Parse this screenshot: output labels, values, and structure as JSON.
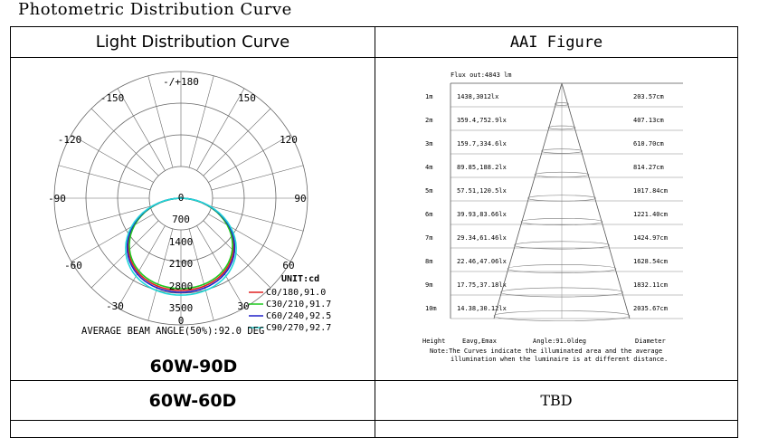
{
  "page_title": "Photometric Distribution Curve",
  "headers": {
    "left": "Light Distribution Curve",
    "right": "AAI Figure"
  },
  "polar": {
    "angle_labels": {
      "top": "-/+180",
      "m150": "-150",
      "p150": "150",
      "m120": "-120",
      "p120": "120",
      "m90": "-90",
      "p90": "90",
      "m60": "-60",
      "p60": "60",
      "m30": "-30",
      "p30": "30",
      "zero": "0"
    },
    "ring_labels": [
      "0",
      "700",
      "1400",
      "2100",
      "2800",
      "3500"
    ],
    "unit": "UNIT:cd",
    "legend": [
      {
        "label": "C0/180,91.0",
        "color": "#e02020"
      },
      {
        "label": "C30/210,91.7",
        "color": "#1ec81e"
      },
      {
        "label": "C60/240,92.5",
        "color": "#2020c8"
      },
      {
        "label": "C90/270,92.7",
        "color": "#20d8d8"
      }
    ],
    "beam_note": "AVERAGE BEAM ANGLE(50%):92.0 DEG",
    "model": "60W-90D"
  },
  "aai": {
    "flux": "Flux out:4843 lm",
    "rows": [
      {
        "height": "1m",
        "eavg": "1438,3012lx",
        "dia": "203.57cm"
      },
      {
        "height": "2m",
        "eavg": "359.4,752.9lx",
        "dia": "407.13cm"
      },
      {
        "height": "3m",
        "eavg": "159.7,334.6lx",
        "dia": "610.70cm"
      },
      {
        "height": "4m",
        "eavg": "89.85,188.2lx",
        "dia": "814.27cm"
      },
      {
        "height": "5m",
        "eavg": "57.51,120.5lx",
        "dia": "1017.84cm"
      },
      {
        "height": "6m",
        "eavg": "39.93,83.66lx",
        "dia": "1221.40cm"
      },
      {
        "height": "7m",
        "eavg": "29.34,61.46lx",
        "dia": "1424.97cm"
      },
      {
        "height": "8m",
        "eavg": "22.46,47.06lx",
        "dia": "1628.54cm"
      },
      {
        "height": "9m",
        "eavg": "17.75,37.18lx",
        "dia": "1832.11cm"
      },
      {
        "height": "10m",
        "eavg": "14.38,30.12lx",
        "dia": "2035.67cm"
      }
    ],
    "footer": {
      "height": "Height",
      "eavg": "Eavg,Emax",
      "angle": "Angle:91.0ldeg",
      "dia": "Diameter"
    },
    "note1": "Note:The Curves indicate the illuminated area and the average",
    "note2": "illumination when the luminaire is at different distance."
  },
  "row2": {
    "left": "60W-60D",
    "right": "TBD"
  }
}
